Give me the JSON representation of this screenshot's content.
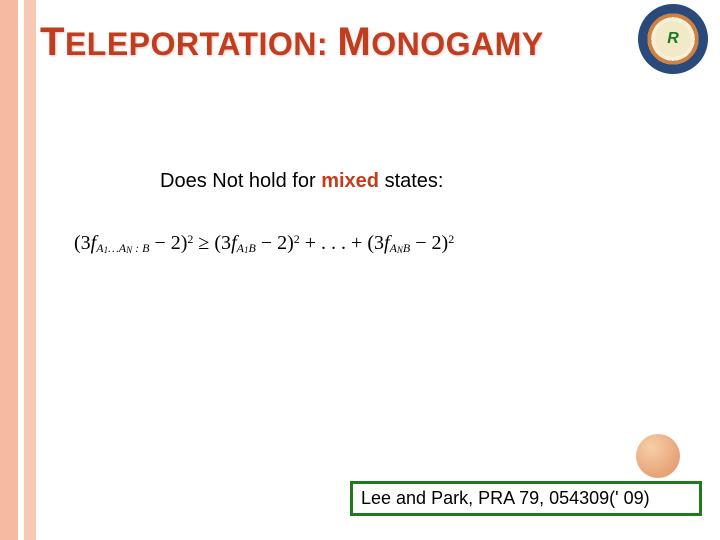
{
  "colors": {
    "title": "#c23c1e",
    "stripe_outer": "#f5bba0",
    "stripe_inner": "#f7c8b3",
    "cite_border": "#1f7a1f",
    "dot_light": "#f8cfa8",
    "dot_dark": "#dd9662",
    "logo_outer": "#294a7a",
    "logo_mid": "#d08040",
    "logo_center": "#f2e9c9",
    "logo_text": "#1a7a2a"
  },
  "title": {
    "word1_big": "T",
    "word1_rest": "ELEPORTATION",
    "sep": ": ",
    "word2_big": "M",
    "word2_rest": "ONOGAMY"
  },
  "subhead": {
    "pre": "Does Not hold for ",
    "mix": "mixed",
    "post": " states:"
  },
  "formula": {
    "lhs_open": "(3",
    "f": "f",
    "lhs_sub1": "A",
    "lhs_sub1_idx": "1",
    "lhs_dots": "…",
    "lhs_subN": "A",
    "lhs_subN_idx": "N",
    "colon": " : ",
    "B": "B",
    "minus2close": " − 2)",
    "sq": "2",
    "geq": " ≥ ",
    "plusdots": " + . . . + "
  },
  "logo_text": "R",
  "citation": "Lee and Park, PRA 79, 054309(' 09)"
}
